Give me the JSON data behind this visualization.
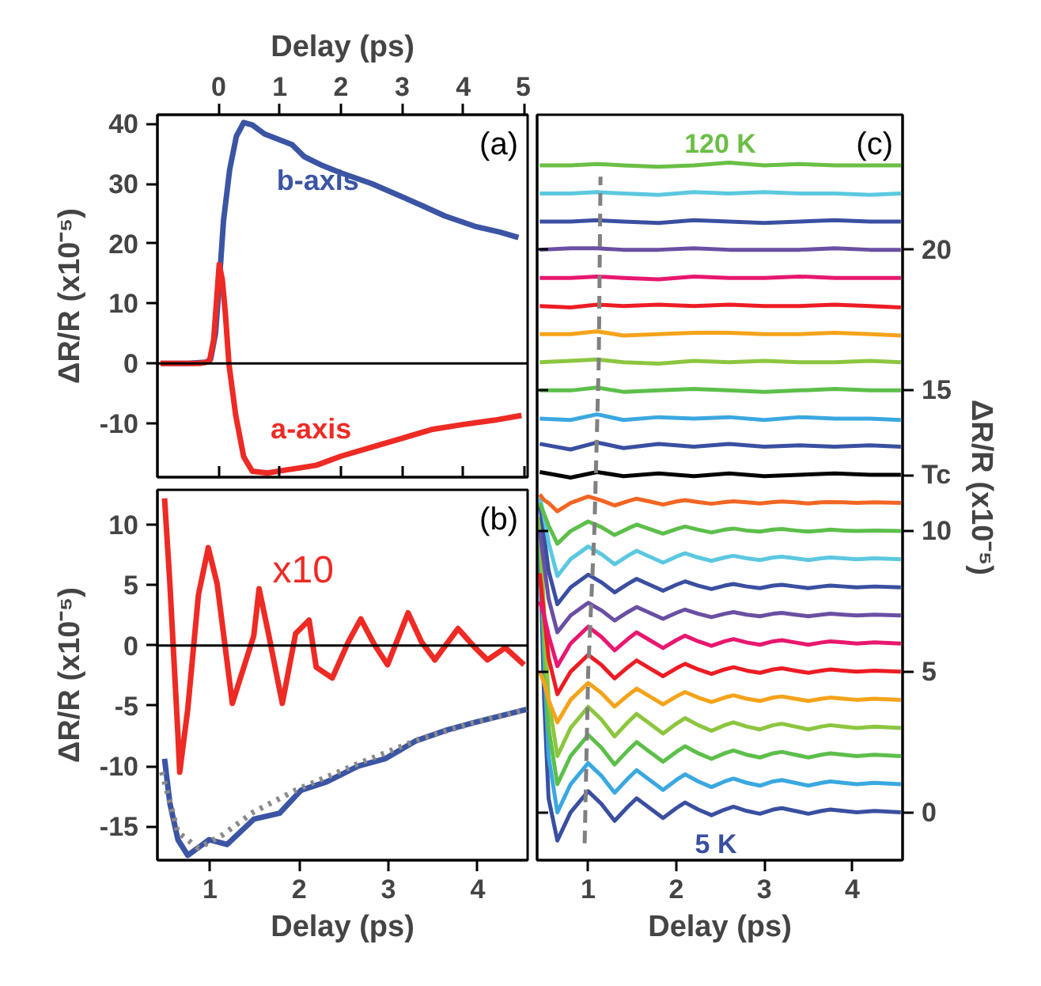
{
  "chart_data": [
    {
      "type": "line",
      "xlabel": "Delay (ps)",
      "xlim": [
        -1,
        5.05
      ],
      "xticks": [
        0,
        1,
        2,
        3,
        4,
        5
      ],
      "ylabel": "ΔR/R (x10⁻⁵)",
      "ylim": [
        -19,
        41.5
      ],
      "yticks": [
        -10,
        0,
        10,
        20,
        30,
        40
      ],
      "series": [
        {
          "name": "b-axis",
          "color": "#3b55a4",
          "x": [
            -0.95,
            -0.5,
            -0.2,
            -0.13,
            -0.05,
            0,
            0.08,
            0.18,
            0.29,
            0.41,
            0.55,
            0.75,
            1.0,
            1.2,
            1.4,
            1.7,
            2.0,
            2.5,
            3.0,
            3.33,
            3.7,
            4.18,
            4.6,
            4.9
          ],
          "values": [
            0,
            0,
            0.2,
            0.7,
            5,
            11.8,
            23.8,
            32.3,
            37.9,
            40.2,
            39.8,
            38.3,
            37.3,
            36.5,
            34.5,
            33,
            31.8,
            30,
            27.8,
            26.3,
            24.6,
            22.9,
            21.9,
            21
          ]
        },
        {
          "name": "a-axis",
          "color": "#ee2a24",
          "x": [
            -0.95,
            -0.3,
            -0.15,
            -0.08,
            0.01,
            0.06,
            0.11,
            0.17,
            0.28,
            0.41,
            0.55,
            0.8,
            1.1,
            1.3,
            1.6,
            2.0,
            2.5,
            3.0,
            3.5,
            4.0,
            4.5,
            4.95
          ],
          "values": [
            0,
            0,
            0.3,
            4,
            16.5,
            14,
            8.4,
            -0.2,
            -8.7,
            -15.6,
            -18,
            -18.3,
            -17.8,
            -17.5,
            -17,
            -15.5,
            -14,
            -12.5,
            -11,
            -10.2,
            -9.5,
            -8.7
          ]
        }
      ],
      "ref_lines": [
        {
          "axis": "y",
          "value": 0,
          "color": "#000000"
        }
      ],
      "annotations": [
        "(a)"
      ]
    },
    {
      "type": "line",
      "xlabel": "Delay (ps)",
      "xlim": [
        0.41,
        4.56
      ],
      "xticks": [
        1,
        2,
        3,
        4
      ],
      "ylabel": "ΔR/R (x10⁻⁵)",
      "ylim": [
        -17.8,
        12.9
      ],
      "yticks": [
        -15,
        -10,
        -5,
        0,
        5,
        10
      ],
      "series": [
        {
          "name": "x10",
          "color": "#ee2a24",
          "x": [
            0.49,
            0.55,
            0.64,
            0.66,
            0.75,
            0.87,
            0.98,
            1.08,
            1.25,
            1.49,
            1.55,
            1.66,
            1.81,
            1.96,
            2.11,
            2.19,
            2.37,
            2.55,
            2.69,
            2.84,
            2.99,
            3.22,
            3.37,
            3.52,
            3.78,
            3.96,
            4.11,
            4.31,
            4.52
          ],
          "values": [
            12.2,
            5.1,
            -7.4,
            -10.5,
            -5.3,
            4.2,
            8.1,
            5.1,
            -4.8,
            0.8,
            4.7,
            0.8,
            -4.8,
            1.0,
            2.1,
            -1.8,
            -2.7,
            0.3,
            2.2,
            0.1,
            -1.6,
            2.7,
            0.3,
            -1.2,
            1.4,
            -0.1,
            -1.2,
            -0.2,
            -1.6
          ]
        },
        {
          "color": "#3b55a4",
          "x": [
            0.49,
            0.55,
            0.64,
            0.75,
            0.99,
            1.19,
            1.49,
            1.78,
            2.02,
            2.31,
            2.66,
            2.96,
            3.31,
            3.66,
            3.96,
            4.55
          ],
          "values": [
            -9.4,
            -13.1,
            -16.1,
            -17.4,
            -16.1,
            -16.5,
            -14.4,
            -13.9,
            -12,
            -11.3,
            -10,
            -9.4,
            -7.9,
            -7,
            -6.4,
            -5.3
          ]
        },
        {
          "color": "#8a8a8a",
          "line_style": "dotted",
          "x": [
            0.46,
            0.64,
            0.87,
            1.14,
            1.49,
            1.96,
            2.66,
            3.37,
            3.96,
            4.55
          ],
          "values": [
            -10.5,
            -15.5,
            -16.8,
            -15.7,
            -13.8,
            -12,
            -9.8,
            -7.7,
            -6.4,
            -5.3
          ]
        }
      ],
      "ref_lines": [
        {
          "axis": "y",
          "value": 0,
          "color": "#000000"
        }
      ],
      "annotations": [
        "(b)"
      ]
    },
    {
      "type": "line",
      "xlabel": "Delay (ps)",
      "xlim": [
        0.42,
        4.57
      ],
      "xticks": [
        1,
        2,
        3,
        4
      ],
      "ylim": [
        -1.7,
        24.8
      ],
      "yticks": [
        0,
        5,
        10,
        {
          "value": 12,
          "label": "Tc"
        },
        15,
        20
      ],
      "ylabel": "ΔR/R (x10⁻⁵)",
      "x": [
        0.45,
        0.5,
        0.55,
        0.65,
        0.8,
        1.0,
        1.15,
        1.3,
        1.45,
        1.55,
        1.7,
        1.85,
        2.0,
        2.1,
        2.25,
        2.4,
        2.55,
        2.65,
        2.8,
        2.95,
        3.1,
        3.2,
        3.35,
        3.5,
        3.65,
        3.75,
        3.9,
        4.05,
        4.25,
        4.55
      ],
      "series": [
        {
          "name": "5 K",
          "color": "#3a4fa0",
          "values": [
            9.5,
            4.0,
            0.5,
            -1.0,
            0.0,
            0.75,
            0.3,
            -0.3,
            0.2,
            0.5,
            0.15,
            -0.2,
            0.15,
            0.35,
            0.1,
            -0.1,
            0.1,
            0.2,
            0.05,
            -0.05,
            0.1,
            0.15,
            0.05,
            -0.05,
            0.05,
            0.1,
            0.05,
            0.0,
            0.05,
            0.0
          ]
        },
        {
          "color": "#3aa8e0",
          "values": [
            10.0,
            5.5,
            2.0,
            0.0,
            1.0,
            1.75,
            1.3,
            0.7,
            1.2,
            1.5,
            1.15,
            0.8,
            1.15,
            1.35,
            1.1,
            0.9,
            1.1,
            1.2,
            1.05,
            0.95,
            1.1,
            1.15,
            1.05,
            0.95,
            1.05,
            1.1,
            1.05,
            1.0,
            1.05,
            1.0
          ]
        },
        {
          "color": "#5cbf4a",
          "values": [
            10.3,
            6.0,
            3.0,
            1.0,
            2.0,
            2.75,
            2.3,
            1.7,
            2.2,
            2.5,
            2.15,
            1.8,
            2.15,
            2.35,
            2.1,
            1.9,
            2.1,
            2.2,
            2.05,
            1.95,
            2.1,
            2.15,
            2.05,
            1.95,
            2.05,
            2.1,
            2.05,
            2.0,
            2.05,
            2.0
          ]
        },
        {
          "color": "#8cc63f",
          "values": [
            10.5,
            7.0,
            4.0,
            2.0,
            3.0,
            3.75,
            3.3,
            2.7,
            3.2,
            3.5,
            3.15,
            2.8,
            3.15,
            3.35,
            3.1,
            2.9,
            3.1,
            3.2,
            3.05,
            2.95,
            3.1,
            3.15,
            3.05,
            2.95,
            3.05,
            3.1,
            3.05,
            3.0,
            3.05,
            3.0
          ]
        },
        {
          "color": "#f5a31a",
          "values": [
            5.0,
            4.6,
            4.0,
            3.2,
            4.0,
            4.6,
            4.24,
            3.76,
            4.16,
            4.4,
            4.12,
            3.84,
            4.12,
            4.28,
            4.08,
            3.92,
            4.08,
            4.16,
            4.04,
            3.96,
            4.08,
            4.12,
            4.04,
            3.96,
            4.04,
            4.08,
            4.04,
            4.0,
            4.04,
            4.0
          ]
        },
        {
          "color": "#ed1c24",
          "values": [
            8.5,
            7.0,
            5.5,
            4.2,
            5.0,
            5.6,
            5.24,
            4.76,
            5.16,
            5.4,
            5.12,
            4.84,
            5.12,
            5.28,
            5.08,
            4.92,
            5.08,
            5.16,
            5.04,
            4.96,
            5.08,
            5.12,
            5.04,
            4.96,
            5.04,
            5.08,
            5.04,
            5.0,
            5.04,
            5.0
          ]
        },
        {
          "color": "#e8176f",
          "values": [
            7.5,
            7.0,
            6.3,
            5.2,
            6.0,
            6.6,
            6.24,
            5.76,
            6.16,
            6.4,
            6.12,
            5.84,
            6.12,
            6.28,
            6.08,
            5.92,
            6.08,
            6.16,
            6.04,
            5.96,
            6.08,
            6.12,
            6.04,
            5.96,
            6.04,
            6.08,
            6.04,
            6.0,
            6.04,
            6.0
          ]
        },
        {
          "color": "#6a4fa3",
          "values": [
            10.0,
            8.8,
            7.6,
            6.4,
            7.0,
            7.45,
            7.18,
            6.82,
            7.12,
            7.3,
            7.09,
            6.88,
            7.09,
            7.21,
            7.06,
            6.94,
            7.06,
            7.12,
            7.03,
            6.97,
            7.06,
            7.09,
            7.03,
            6.97,
            7.03,
            7.06,
            7.03,
            7.0,
            7.03,
            7.0
          ]
        },
        {
          "color": "#3a4fa0",
          "values": [
            11.0,
            9.8,
            8.6,
            7.4,
            8.0,
            8.45,
            8.18,
            7.82,
            8.12,
            8.3,
            8.09,
            7.88,
            8.09,
            8.21,
            8.06,
            7.94,
            8.06,
            8.12,
            8.03,
            7.97,
            8.06,
            8.09,
            8.03,
            7.97,
            8.03,
            8.06,
            8.03,
            8.0,
            8.03,
            8.0
          ]
        },
        {
          "color": "#5bc8e0",
          "values": [
            11.2,
            10.5,
            9.6,
            8.4,
            9.0,
            9.45,
            9.18,
            8.82,
            9.12,
            9.3,
            9.09,
            8.88,
            9.09,
            9.21,
            9.06,
            8.94,
            9.06,
            9.12,
            9.03,
            8.97,
            9.06,
            9.09,
            9.03,
            8.97,
            9.03,
            9.06,
            9.03,
            9.0,
            9.03,
            9.0
          ]
        },
        {
          "color": "#5cbf4a",
          "values": [
            11.0,
            10.6,
            10.2,
            9.55,
            10.0,
            10.34,
            10.14,
            9.86,
            10.09,
            10.23,
            10.07,
            9.91,
            10.07,
            10.16,
            10.05,
            9.95,
            10.05,
            10.09,
            10.02,
            9.98,
            10.05,
            10.07,
            10.02,
            9.98,
            10.02,
            10.05,
            10.02,
            10.0,
            10.02,
            10.0
          ]
        },
        {
          "color": "#f26522",
          "values": [
            11.3,
            11.1,
            11.0,
            10.7,
            11.0,
            11.23,
            11.09,
            10.91,
            11.06,
            11.15,
            11.05,
            10.94,
            11.05,
            11.1,
            11.03,
            10.97,
            11.03,
            11.06,
            11.02,
            10.98,
            11.03,
            11.05,
            11.02,
            10.98,
            11.02,
            11.03,
            11.02,
            11.0,
            11.02,
            11.0
          ]
        },
        {
          "color": "#000000",
          "x": [
            0.45,
            0.8,
            1.1,
            1.4,
            1.8,
            2.2,
            2.6,
            3.0,
            3.4,
            3.8,
            4.2,
            4.55
          ],
          "values": [
            12.1,
            11.9,
            12.1,
            11.95,
            12.05,
            11.95,
            12.05,
            11.95,
            12.0,
            12.05,
            12.0,
            12.0
          ]
        },
        {
          "color": "#3a4fa0",
          "x": [
            0.45,
            0.8,
            1.1,
            1.4,
            1.8,
            2.2,
            2.6,
            3.0,
            3.4,
            3.8,
            4.2,
            4.55
          ],
          "values": [
            13.1,
            12.9,
            13.15,
            12.95,
            13.1,
            13.0,
            13.1,
            13.0,
            13.05,
            13.0,
            13.05,
            13.0
          ]
        },
        {
          "color": "#3aa8e0",
          "x": [
            0.45,
            0.8,
            1.1,
            1.4,
            1.8,
            2.2,
            2.6,
            3.0,
            3.4,
            3.8,
            4.2,
            4.55
          ],
          "values": [
            14.0,
            13.95,
            14.15,
            13.95,
            14.05,
            14.0,
            14.05,
            13.95,
            14.05,
            14.0,
            14.0,
            13.95
          ]
        },
        {
          "color": "#5cbf4a",
          "x": [
            0.45,
            0.8,
            1.1,
            1.4,
            1.8,
            2.2,
            2.6,
            3.0,
            3.4,
            3.8,
            4.2,
            4.55
          ],
          "values": [
            15.0,
            15.0,
            15.1,
            14.95,
            15.0,
            15.05,
            15.0,
            14.95,
            15.0,
            15.05,
            15.0,
            15.0
          ]
        },
        {
          "color": "#8cc63f",
          "x": [
            0.45,
            0.8,
            1.1,
            1.4,
            1.8,
            2.2,
            2.6,
            3.0,
            3.4,
            3.8,
            4.2,
            4.55
          ],
          "values": [
            16.0,
            16.05,
            16.1,
            16.0,
            15.95,
            16.05,
            16.0,
            16.05,
            16.0,
            16.0,
            16.05,
            16.0
          ]
        },
        {
          "color": "#f5a31a",
          "x": [
            0.45,
            0.8,
            1.1,
            1.4,
            1.8,
            2.2,
            2.6,
            3.0,
            3.4,
            3.8,
            4.2,
            4.55
          ],
          "values": [
            17.0,
            17.0,
            17.1,
            16.95,
            17.0,
            17.05,
            17.05,
            17.0,
            17.0,
            17.05,
            17.0,
            16.95
          ]
        },
        {
          "color": "#ed1c24",
          "x": [
            0.45,
            0.8,
            1.1,
            1.4,
            1.8,
            2.2,
            2.6,
            3.0,
            3.4,
            3.8,
            4.2,
            4.55
          ],
          "values": [
            18.0,
            17.95,
            18.05,
            18.0,
            18.05,
            18.0,
            18.05,
            18.0,
            18.0,
            18.05,
            18.0,
            17.95
          ]
        },
        {
          "color": "#e8176f",
          "x": [
            0.45,
            0.8,
            1.1,
            1.4,
            1.8,
            2.2,
            2.6,
            3.0,
            3.4,
            3.8,
            4.2,
            4.55
          ],
          "values": [
            19.0,
            19.0,
            19.05,
            19.0,
            18.95,
            19.05,
            19.0,
            19.0,
            19.05,
            19.0,
            19.0,
            19.0
          ]
        },
        {
          "color": "#6a4fa3",
          "x": [
            0.45,
            0.8,
            1.1,
            1.4,
            1.8,
            2.2,
            2.6,
            3.0,
            3.4,
            3.8,
            4.2,
            4.55
          ],
          "values": [
            20.0,
            20.05,
            20.05,
            20.0,
            20.0,
            20.05,
            20.0,
            20.0,
            20.0,
            20.05,
            20.0,
            20.0
          ]
        },
        {
          "color": "#3a4fa0",
          "x": [
            0.45,
            0.8,
            1.1,
            1.4,
            1.8,
            2.2,
            2.6,
            3.0,
            3.4,
            3.8,
            4.2,
            4.55
          ],
          "values": [
            21.0,
            21.0,
            21.05,
            21.0,
            20.95,
            21.05,
            21.0,
            20.95,
            21.0,
            21.05,
            21.0,
            21.0
          ]
        },
        {
          "color": "#5bc8e0",
          "x": [
            0.45,
            0.8,
            1.1,
            1.4,
            1.8,
            2.2,
            2.6,
            3.0,
            3.4,
            3.8,
            4.2,
            4.55
          ],
          "values": [
            22.0,
            22.0,
            22.05,
            22.0,
            21.95,
            22.05,
            22.0,
            22.05,
            22.0,
            22.0,
            21.95,
            22.0
          ]
        },
        {
          "name": "120 K",
          "color": "#6abf45",
          "x": [
            0.45,
            0.8,
            1.1,
            1.4,
            1.8,
            2.2,
            2.6,
            3.0,
            3.4,
            3.8,
            4.2,
            4.55
          ],
          "values": [
            23.0,
            23.0,
            23.05,
            23.0,
            22.95,
            23.0,
            23.1,
            23.0,
            23.05,
            23.0,
            23.0,
            23.0
          ]
        },
        {
          "color": "#808080",
          "line_style": "dashed",
          "x": [
            0.96,
            1.0,
            1.07,
            1.12,
            1.14
          ],
          "values": [
            -1.1,
            5,
            10,
            16,
            22.6
          ]
        }
      ],
      "annotations": [
        "(c)"
      ]
    }
  ]
}
